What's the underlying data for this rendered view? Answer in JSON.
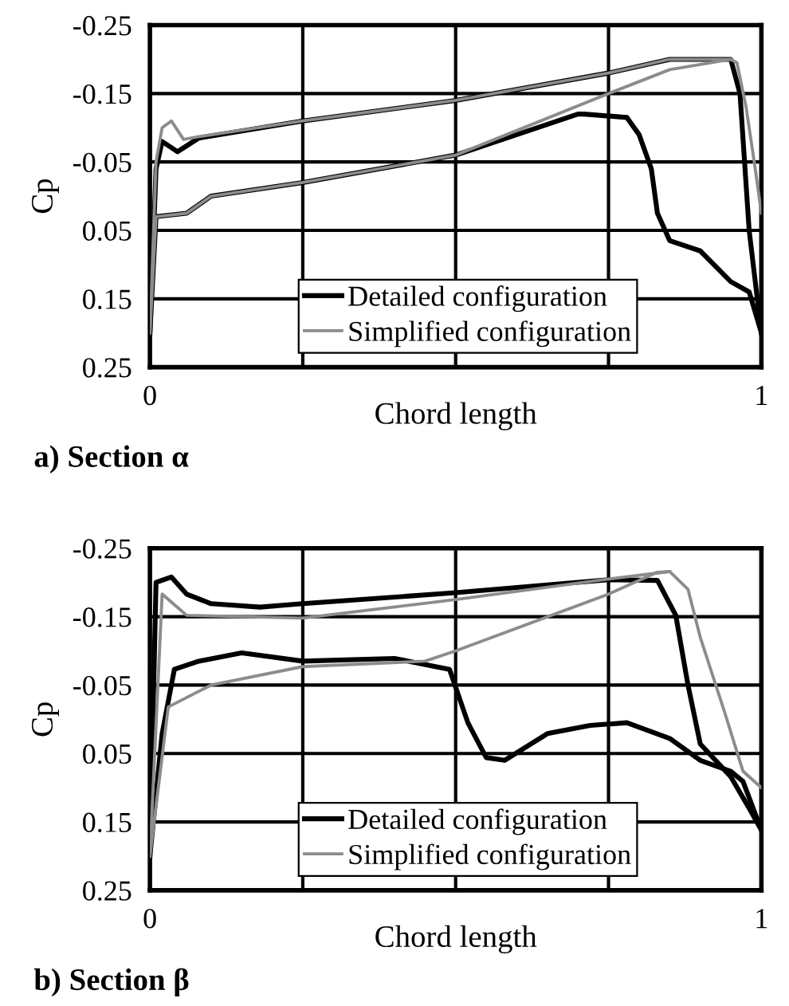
{
  "chart_data": [
    {
      "type": "line",
      "title": "a) Section α",
      "xlabel": "Chord length",
      "ylabel": "Cp",
      "xlim": [
        0,
        1
      ],
      "ylim": [
        0.25,
        -0.25
      ],
      "xticks": [
        {
          "value": 0,
          "label": "0"
        },
        {
          "value": 0.25,
          "label": null
        },
        {
          "value": 0.5,
          "label": null
        },
        {
          "value": 0.75,
          "label": null
        },
        {
          "value": 1,
          "label": "1"
        }
      ],
      "yticks": [
        {
          "value": -0.25,
          "label": "-0.25"
        },
        {
          "value": -0.15,
          "label": "-0.15"
        },
        {
          "value": -0.05,
          "label": "-0.05"
        },
        {
          "value": 0.05,
          "label": "0.05"
        },
        {
          "value": 0.15,
          "label": "0.15"
        },
        {
          "value": 0.25,
          "label": "0.25"
        }
      ],
      "grid": true,
      "legend": "bottom",
      "marker": "none",
      "line_style": "solid",
      "series": [
        {
          "name": "Detailed configuration",
          "color": "#000000",
          "x": [
            0,
            0.01,
            0.02,
            0.045,
            0.08,
            0.25,
            0.5,
            0.75,
            0.85,
            0.95,
            0.965,
            0.98,
            1
          ],
          "values": [
            0.2,
            -0.04,
            -0.08,
            -0.065,
            -0.085,
            -0.11,
            -0.14,
            -0.18,
            -0.2,
            -0.2,
            -0.15,
            0.05,
            0.2
          ]
        },
        {
          "color": "#000000",
          "x": [
            0,
            0.01,
            0.06,
            0.1,
            0.25,
            0.5,
            0.7,
            0.71,
            0.78,
            0.8,
            0.82,
            0.83,
            0.85,
            0.9,
            0.95,
            0.98,
            1
          ],
          "values": [
            0.2,
            0.03,
            0.025,
            0.0,
            -0.02,
            -0.06,
            -0.12,
            -0.12,
            -0.115,
            -0.09,
            -0.04,
            0.025,
            0.065,
            0.08,
            0.125,
            0.14,
            0.2
          ]
        },
        {
          "name": "Simplified configuration",
          "color": "#8c8c8c",
          "x": [
            0,
            0.01,
            0.02,
            0.035,
            0.055,
            0.08,
            0.25,
            0.5,
            0.75,
            0.85,
            0.95,
            0.96,
            0.975,
            0.99,
            1
          ],
          "values": [
            0.2,
            -0.05,
            -0.1,
            -0.11,
            -0.083,
            -0.087,
            -0.11,
            -0.14,
            -0.18,
            -0.2,
            -0.2,
            -0.195,
            -0.13,
            -0.04,
            0.025
          ]
        },
        {
          "color": "#8c8c8c",
          "x": [
            0,
            0.01,
            0.06,
            0.1,
            0.25,
            0.5,
            0.75,
            0.85,
            0.95
          ],
          "values": [
            0.2,
            0.03,
            0.025,
            0.0,
            -0.02,
            -0.06,
            -0.15,
            -0.185,
            -0.2
          ]
        }
      ]
    },
    {
      "type": "line",
      "title": "b) Section β",
      "xlabel": "Chord length",
      "ylabel": "Cp",
      "xlim": [
        0,
        1
      ],
      "ylim": [
        0.25,
        -0.25
      ],
      "xticks": [
        {
          "value": 0,
          "label": "0"
        },
        {
          "value": 0.25,
          "label": null
        },
        {
          "value": 0.5,
          "label": null
        },
        {
          "value": 0.75,
          "label": null
        },
        {
          "value": 1,
          "label": "1"
        }
      ],
      "yticks": [
        {
          "value": -0.25,
          "label": "-0.25"
        },
        {
          "value": -0.15,
          "label": "-0.15"
        },
        {
          "value": -0.05,
          "label": "-0.05"
        },
        {
          "value": 0.05,
          "label": "0.05"
        },
        {
          "value": 0.15,
          "label": "0.15"
        },
        {
          "value": 0.25,
          "label": "0.25"
        }
      ],
      "grid": true,
      "legend": "bottom",
      "marker": "none",
      "line_style": "solid",
      "series": [
        {
          "name": "Detailed configuration",
          "color": "#000000",
          "x": [
            0,
            0.01,
            0.035,
            0.06,
            0.1,
            0.18,
            0.25,
            0.5,
            0.75,
            0.83,
            0.86,
            0.88,
            0.9,
            0.95,
            0.98,
            1
          ],
          "values": [
            0.2,
            -0.2,
            -0.208,
            -0.183,
            -0.169,
            -0.164,
            -0.169,
            -0.185,
            -0.204,
            -0.203,
            -0.152,
            -0.05,
            0.036,
            0.084,
            0.13,
            0.162
          ]
        },
        {
          "color": "#000000",
          "x": [
            0,
            0.02,
            0.04,
            0.08,
            0.15,
            0.25,
            0.4,
            0.49,
            0.52,
            0.55,
            0.58,
            0.65,
            0.72,
            0.78,
            0.85,
            0.9,
            0.95,
            0.97,
            1
          ],
          "values": [
            0.2,
            0.021,
            -0.073,
            -0.085,
            -0.097,
            -0.085,
            -0.089,
            -0.073,
            0.005,
            0.056,
            0.06,
            0.021,
            0.009,
            0.005,
            0.028,
            0.06,
            0.076,
            0.091,
            0.162
          ]
        },
        {
          "name": "Simplified configuration",
          "color": "#8c8c8c",
          "x": [
            0,
            0.02,
            0.06,
            0.25,
            0.5,
            0.75,
            0.85,
            0.88,
            0.9,
            0.94,
            0.97,
            1
          ],
          "values": [
            0.2,
            -0.183,
            -0.152,
            -0.148,
            -0.175,
            -0.205,
            -0.216,
            -0.19,
            -0.12,
            -0.01,
            0.076,
            0.1
          ]
        },
        {
          "color": "#8c8c8c",
          "x": [
            0,
            0.03,
            0.1,
            0.25,
            0.45,
            0.5,
            0.75,
            0.83,
            0.85
          ],
          "values": [
            0.2,
            -0.018,
            -0.05,
            -0.077,
            -0.085,
            -0.1,
            -0.183,
            -0.215,
            -0.216
          ]
        }
      ]
    }
  ]
}
